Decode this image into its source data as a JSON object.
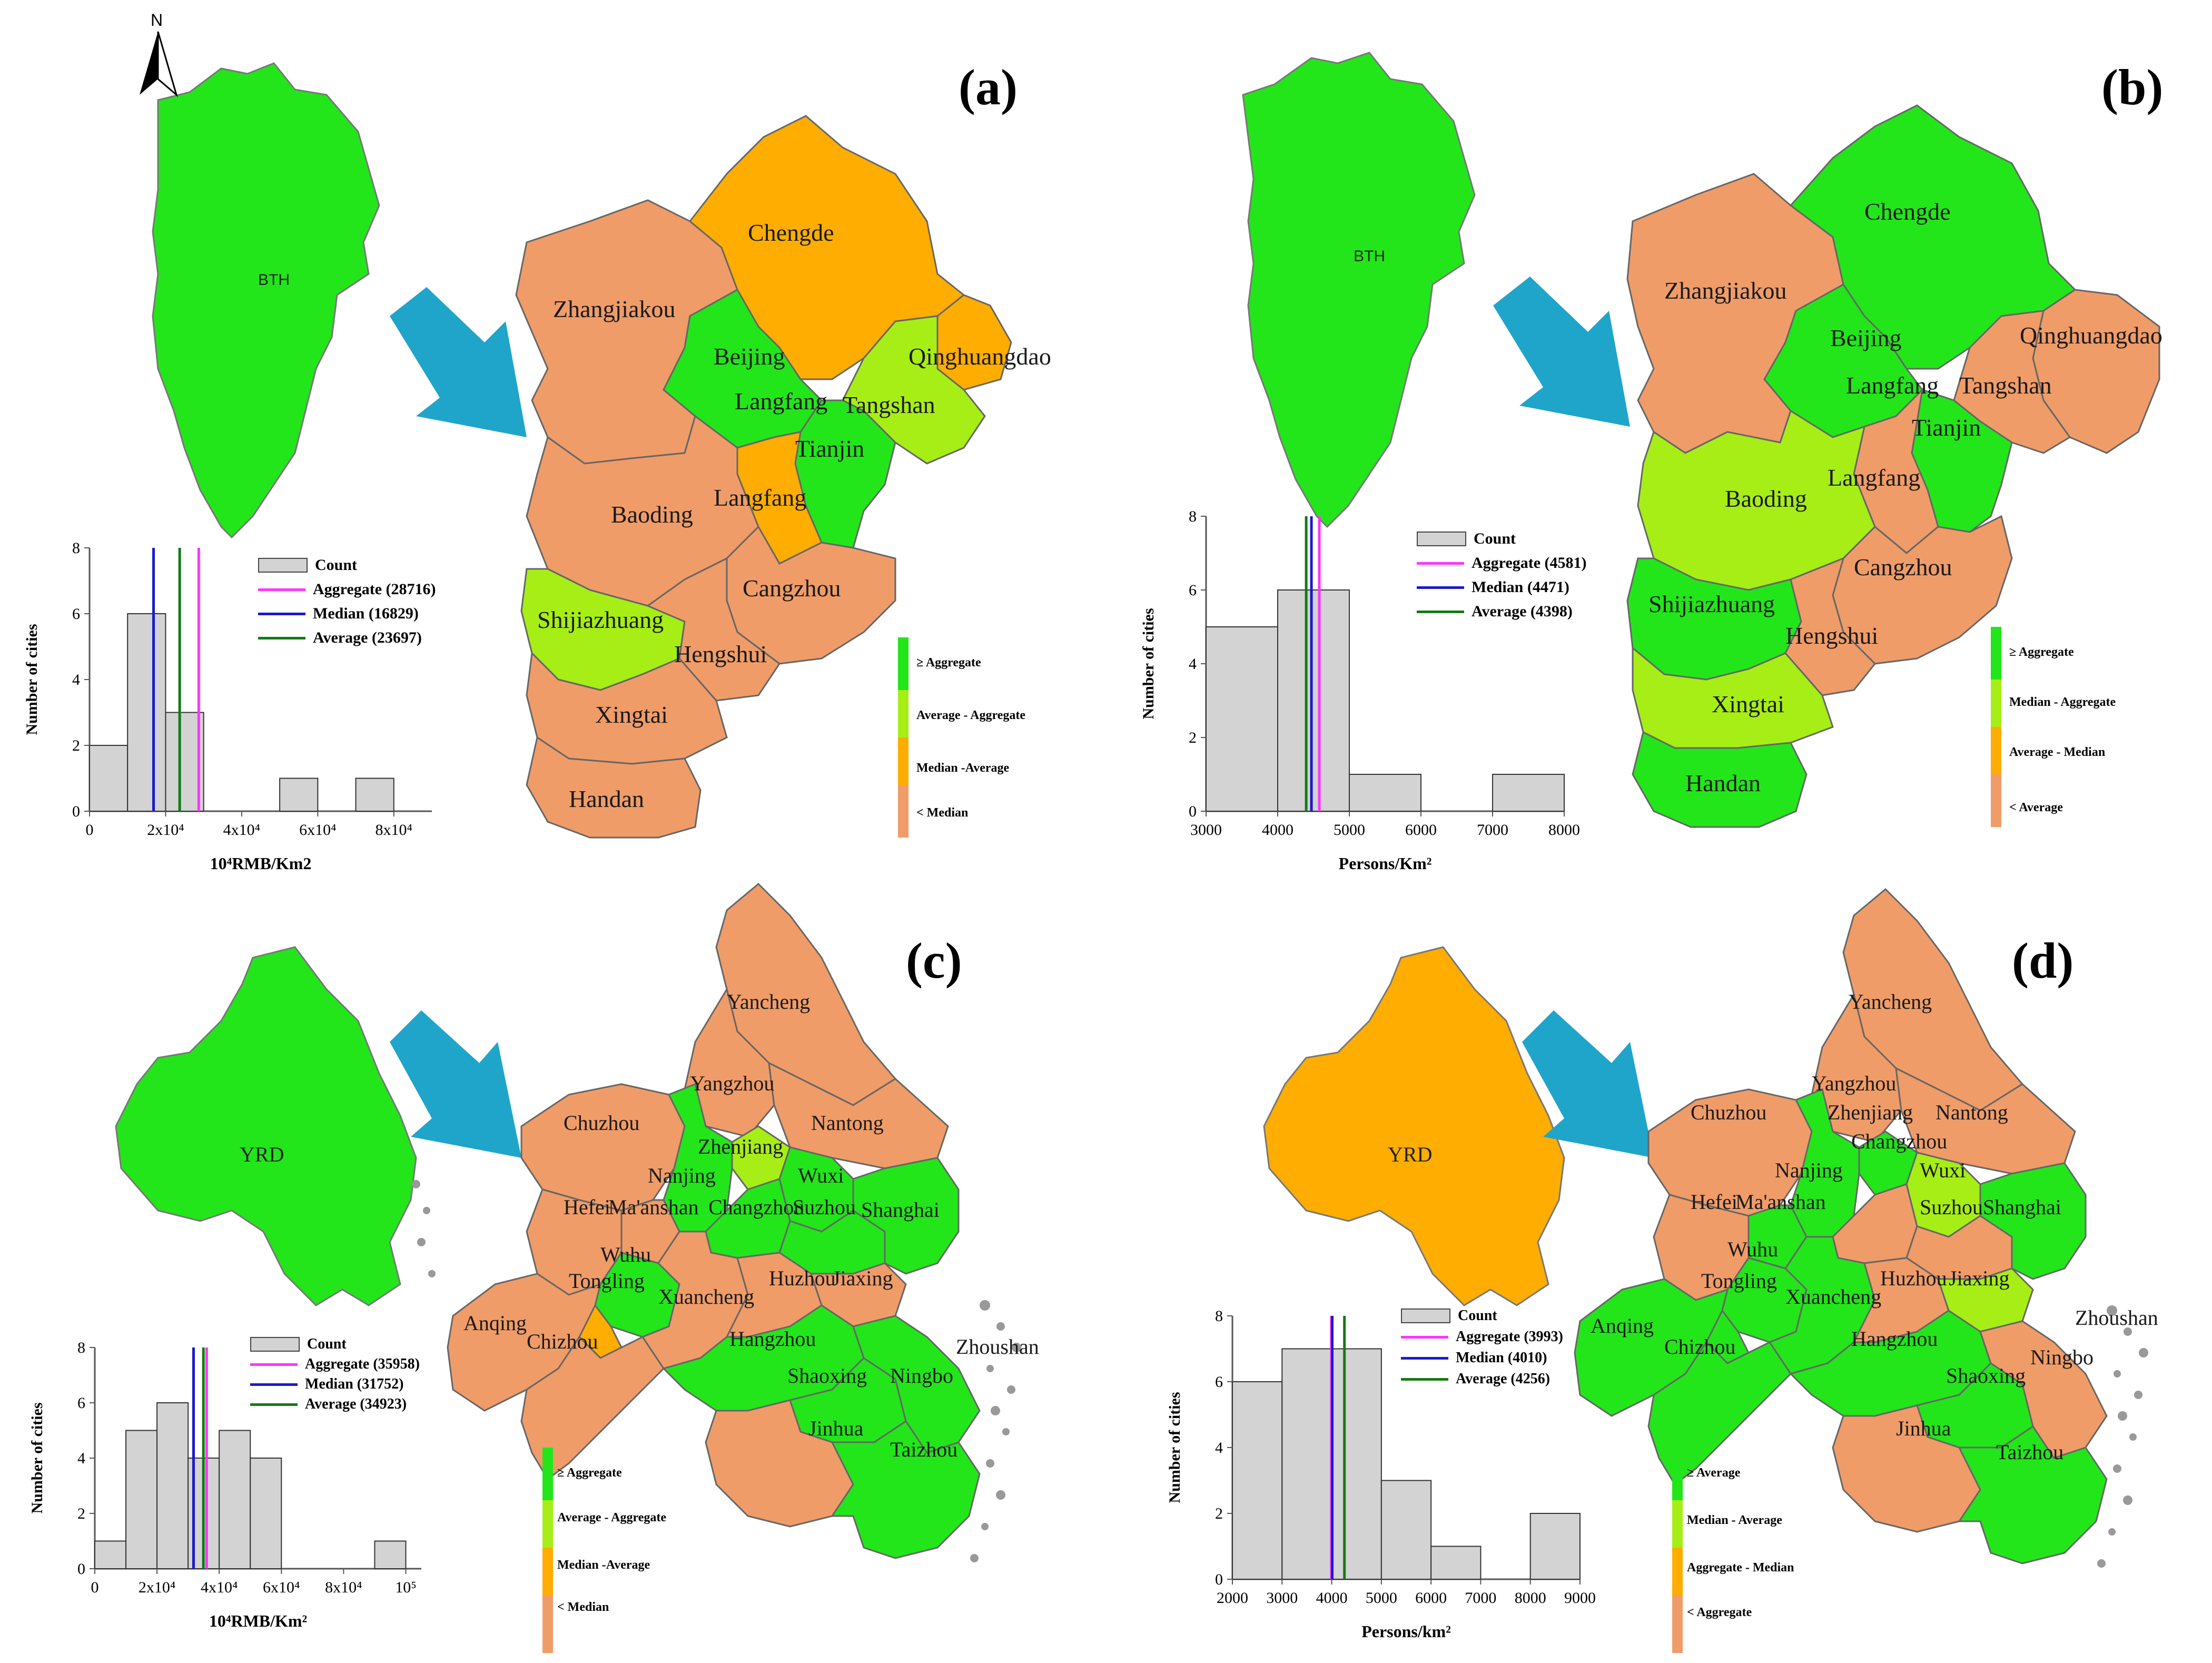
{
  "panels": [
    {
      "tag": "(a)",
      "overview": "BTH",
      "north": "N",
      "cities": [
        "Chengde",
        "Zhangjiakou",
        "Beijing",
        "Qinghuangdao",
        "Langfang",
        "Tangshan",
        "Tianjin",
        "Langfang",
        "Baoding",
        "Cangzhou",
        "Shijiazhuang",
        "Hengshui",
        "Xingtai",
        "Handan"
      ],
      "legend": [
        "≥ Aggregate",
        "Average - Aggregate",
        "Median -Average",
        "< Median"
      ],
      "hist_legend": {
        "count": "Count",
        "aggregate": "Aggregate (28716)",
        "median": "Median (16829)",
        "average": "Average (23697)"
      },
      "ylabel": "Number of cities",
      "xlabel": "10⁴RMB/Km2",
      "xticks": [
        "0",
        "2x10⁴",
        "4x10⁴",
        "6x10⁴",
        "8x10⁴"
      ],
      "yticks": [
        "0",
        "2",
        "4",
        "6",
        "8"
      ]
    },
    {
      "tag": "(b)",
      "overview": "BTH",
      "cities": [
        "Chengde",
        "Zhangjiakou",
        "Beijing",
        "Qinghuangdao",
        "Langfang",
        "Tangshan",
        "Tianjin",
        "Baoding",
        "Langfang",
        "Cangzhou",
        "Shijiazhuang",
        "Hengshui",
        "Xingtai",
        "Handan"
      ],
      "legend": [
        "≥ Aggregate",
        "Median - Aggregate",
        "Average - Median",
        "< Average"
      ],
      "hist_legend": {
        "count": "Count",
        "aggregate": "Aggregate (4581)",
        "median": "Median (4471)",
        "average": "Average (4398)"
      },
      "ylabel": "Number of cities",
      "xlabel": "Persons/Km²",
      "xticks": [
        "3000",
        "4000",
        "5000",
        "6000",
        "7000",
        "8000"
      ],
      "yticks": [
        "0",
        "2",
        "4",
        "6",
        "8"
      ]
    },
    {
      "tag": "(c)",
      "overview": "YRD",
      "cities": [
        "Yancheng",
        "Yangzhou",
        "Nantong",
        "Chuzhou",
        "Zhenjiang",
        "Nanjing",
        "Wuxi",
        "Hefei",
        "Ma'anshan",
        "Changzhou",
        "Suzhou",
        "Shanghai",
        "Wuhu",
        "Tongling",
        "Xuancheng",
        "Huzhou",
        "Jiaxing",
        "Anqing",
        "Chizhou",
        "Hangzhou",
        "Zhoushan",
        "Shaoxing",
        "Ningbo",
        "Jinhua",
        "Taizhou"
      ],
      "legend": [
        "≥ Aggregate",
        "Average - Aggregate",
        "Median -Average",
        "< Median"
      ],
      "hist_legend": {
        "count": "Count",
        "aggregate": "Aggregate (35958)",
        "median": "Median (31752)",
        "average": "Average (34923)"
      },
      "ylabel": "Number of cities",
      "xlabel": "10⁴RMB/Km²",
      "xticks": [
        "0",
        "2x10⁴",
        "4x10⁴",
        "6x10⁴",
        "8x10⁴",
        "10⁵"
      ],
      "yticks": [
        "0",
        "2",
        "4",
        "6",
        "8"
      ]
    },
    {
      "tag": "(d)",
      "overview": "YRD",
      "cities": [
        "Yancheng",
        "Yangzhou",
        "Zhenjiang",
        "Nantong",
        "Chuzhou",
        "Changzhou",
        "Nanjing",
        "Wuxi",
        "Hefei",
        "Ma'anshan",
        "Suzhou",
        "Shanghai",
        "Wuhu",
        "Tongling",
        "Xuancheng",
        "Huzhou",
        "Jiaxing",
        "Zhoushan",
        "Anqing",
        "Chizhou",
        "Hangzhou",
        "Ningbo",
        "Shaoxing",
        "Jinhua",
        "Taizhou"
      ],
      "legend": [
        "≥ Average",
        "Median - Average",
        "Aggregate - Median",
        "< Aggregate"
      ],
      "hist_legend": {
        "count": "Count",
        "aggregate": "Aggregate (3993)",
        "median": "Median (4010)",
        "average": "Average (4256)"
      },
      "ylabel": "Number of cities",
      "xlabel": "Persons/km²",
      "xticks": [
        "2000",
        "3000",
        "4000",
        "5000",
        "6000",
        "7000",
        "8000",
        "9000"
      ],
      "yticks": [
        "0",
        "2",
        "4",
        "6",
        "8"
      ]
    }
  ],
  "colors": {
    "green": "#22e61a",
    "light_green": "#a6ee16",
    "orange": "#ffad00",
    "salmon": "#f09c68",
    "arrow": "#1fa5c9",
    "magenta": "#ff33ff",
    "blue": "#1a1acc",
    "dark_green": "#147a14",
    "bar": "#d3d3d3"
  },
  "chart_data": [
    {
      "type": "bar",
      "title": "(a)",
      "xlabel": "10⁴RMB/Km2",
      "ylabel": "Number of cities",
      "bin_edges": [
        0,
        10000,
        20000,
        30000,
        40000,
        50000,
        60000,
        70000,
        80000,
        90000
      ],
      "values": [
        2,
        6,
        3,
        0,
        0,
        1,
        0,
        1,
        0
      ],
      "ylim": [
        0,
        8
      ],
      "xlim": [
        0,
        90000
      ],
      "lines": {
        "Aggregate": 28716,
        "Median": 16829,
        "Average": 23697
      }
    },
    {
      "type": "bar",
      "title": "(b)",
      "xlabel": "Persons/Km²",
      "ylabel": "Number of cities",
      "bin_edges": [
        3000,
        4000,
        5000,
        6000,
        7000,
        8000
      ],
      "values": [
        5,
        6,
        1,
        0,
        1
      ],
      "ylim": [
        0,
        8
      ],
      "xlim": [
        3000,
        8000
      ],
      "lines": {
        "Aggregate": 4581,
        "Median": 4471,
        "Average": 4398
      }
    },
    {
      "type": "bar",
      "title": "(c)",
      "xlabel": "10⁴RMB/Km²",
      "ylabel": "Number of cities",
      "bin_edges": [
        0,
        10000,
        20000,
        30000,
        40000,
        50000,
        60000,
        70000,
        80000,
        90000,
        100000
      ],
      "values": [
        1,
        5,
        6,
        4,
        5,
        4,
        0,
        0,
        0,
        1
      ],
      "ylim": [
        0,
        8
      ],
      "xlim": [
        0,
        105000
      ],
      "lines": {
        "Aggregate": 35958,
        "Median": 31752,
        "Average": 34923
      }
    },
    {
      "type": "bar",
      "title": "(d)",
      "xlabel": "Persons/km²",
      "ylabel": "Number of cities",
      "bin_edges": [
        2000,
        3000,
        4000,
        5000,
        6000,
        7000,
        8000,
        9000
      ],
      "values": [
        6,
        7,
        7,
        3,
        1,
        0,
        2
      ],
      "ylim": [
        0,
        8
      ],
      "xlim": [
        2000,
        9000
      ],
      "lines": {
        "Aggregate": 3993,
        "Median": 4010,
        "Average": 4256
      }
    }
  ]
}
